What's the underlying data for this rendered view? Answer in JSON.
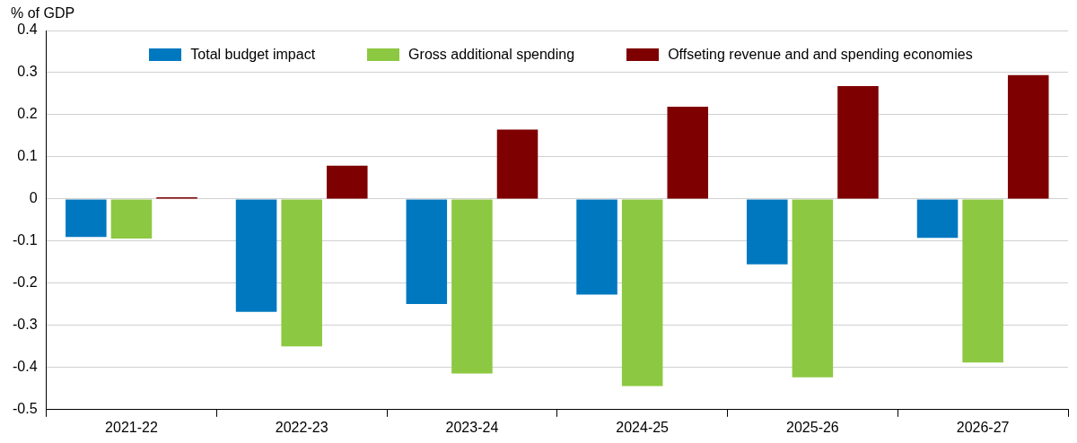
{
  "chart_data": {
    "type": "bar",
    "ylabel": "% of GDP",
    "categories": [
      "2021-22",
      "2022-23",
      "2023-24",
      "2024-25",
      "2025-26",
      "2026-27"
    ],
    "series": [
      {
        "name": "Total budget impact",
        "color": "#0078c0",
        "values": [
          -0.09,
          -0.268,
          -0.249,
          -0.227,
          -0.155,
          -0.092
        ]
      },
      {
        "name": "Gross additional spending",
        "color": "#8cc841",
        "values": [
          -0.094,
          -0.35,
          -0.414,
          -0.444,
          -0.423,
          -0.388
        ]
      },
      {
        "name": "Offseting revenue and and spending economies",
        "color": "#7f0000",
        "values": [
          0.004,
          0.079,
          0.165,
          0.219,
          0.268,
          0.294
        ]
      }
    ],
    "ylim": [
      -0.5,
      0.4
    ],
    "yticks": [
      -0.5,
      -0.4,
      -0.3,
      -0.2,
      -0.1,
      0,
      0.1,
      0.2,
      0.3,
      0.4
    ],
    "grid": "y",
    "legend": "top"
  }
}
